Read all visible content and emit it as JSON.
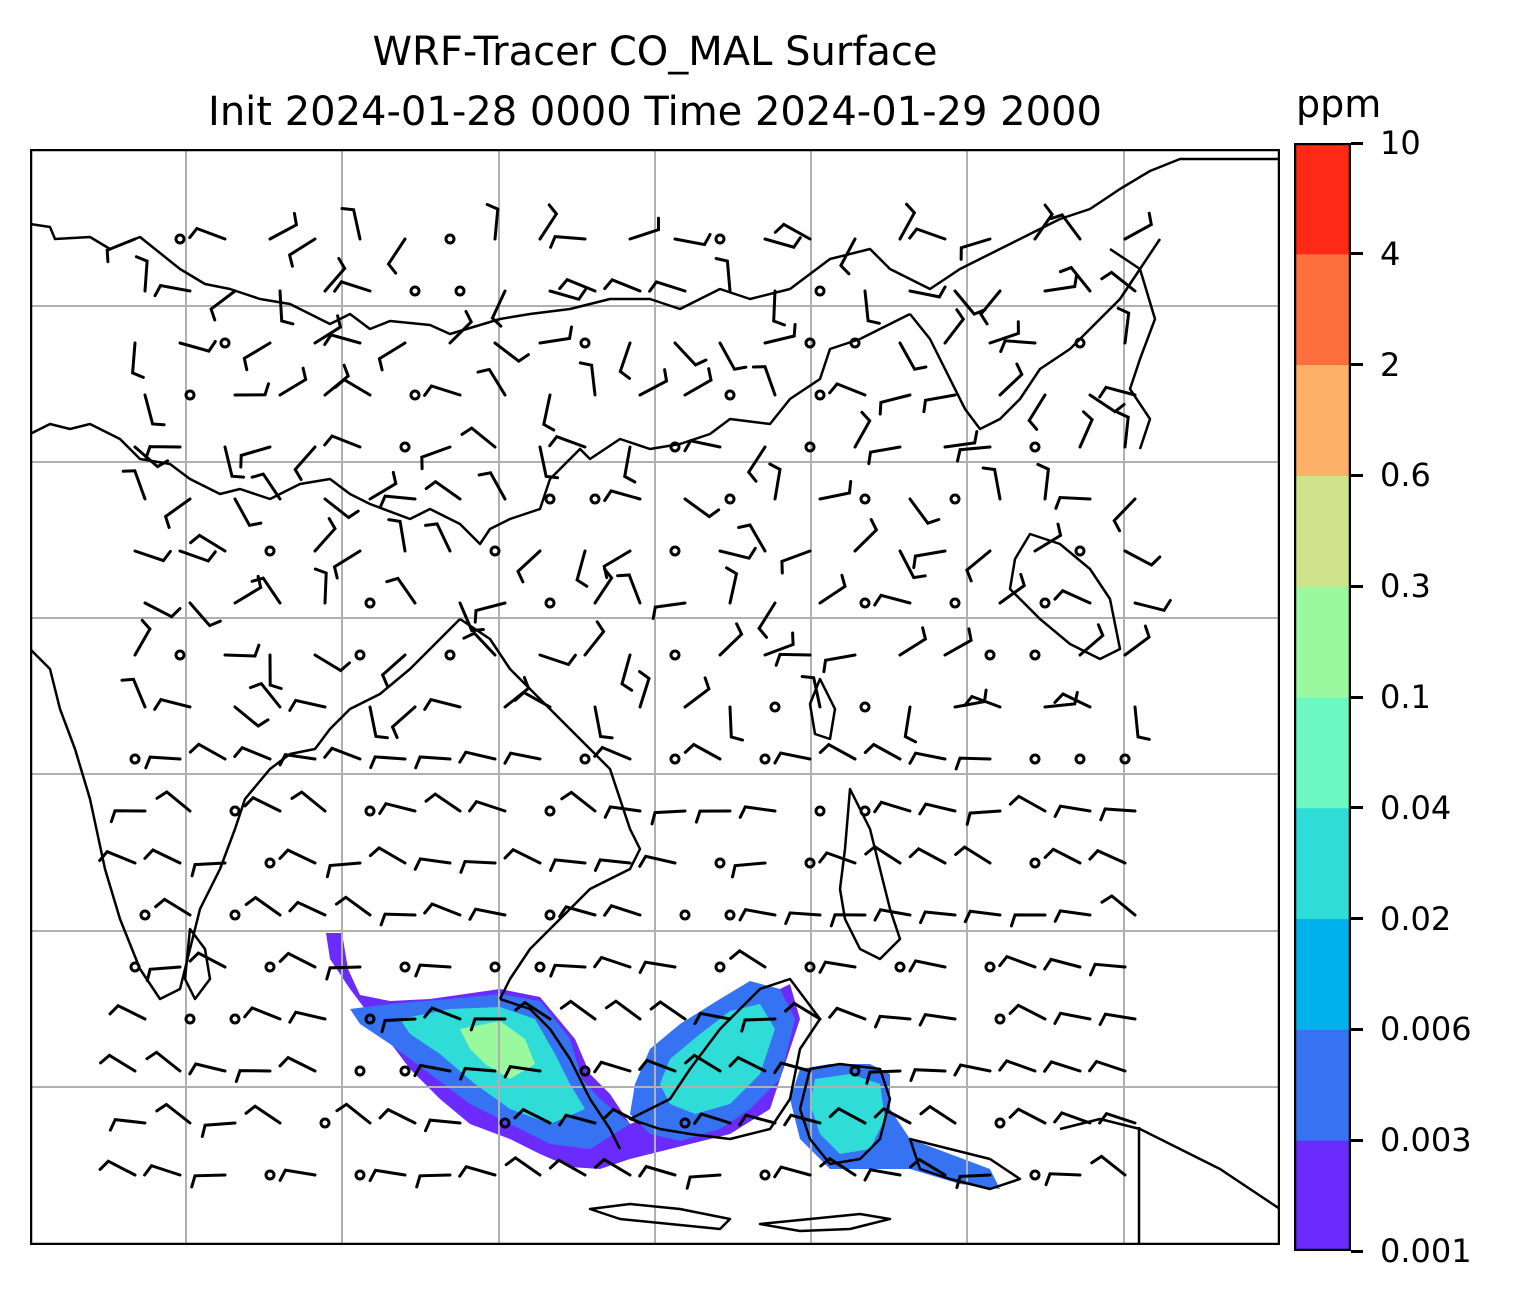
{
  "title": {
    "line1": "WRF-Tracer CO_MAL Surface",
    "line2": "Init 2024-01-28 0000 Time 2024-01-29 2000"
  },
  "colorbar": {
    "unit": "ppm",
    "ticks": [
      "10",
      "4",
      "2",
      "0.6",
      "0.3",
      "0.1",
      "0.04",
      "0.02",
      "0.006",
      "0.003",
      "0.001"
    ],
    "colors": [
      "#6a2bfc",
      "#3573f2",
      "#00b2ec",
      "#2fdcd7",
      "#6bf9c1",
      "#9af99e",
      "#d0e28a",
      "#fdb067",
      "#ff6f3d",
      "#ff2a15"
    ]
  },
  "map": {
    "gridlines": true,
    "coastline_color": "#000000",
    "field": "CO_MAL tracer concentration",
    "wind_barbs": true
  }
}
